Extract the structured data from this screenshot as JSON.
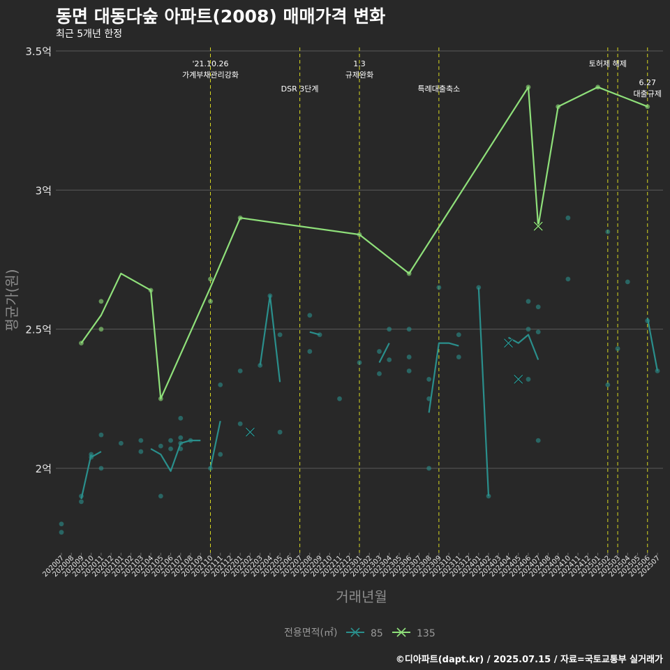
{
  "title": "동면 대동다숲 아파트(2008) 매매가격 변화",
  "subtitle": "최근 5개년 한정",
  "caption": "©디아파트(dapt.kr) / 2025.07.15 / 자료=국토교통부 실거래가",
  "colors": {
    "background": "#282828",
    "grid": "#5a5a5a",
    "series_85": "#2a8f8c",
    "series_135": "#8fe07a",
    "event_line": "#d8d820"
  },
  "chart_data": {
    "type": "line",
    "xlabel": "거래년월",
    "ylabel": "평균가(원)",
    "ylim": [
      1.7,
      3.5
    ],
    "yticks": [
      {
        "value": 2.0,
        "label": "2억"
      },
      {
        "value": 2.5,
        "label": "2.5억"
      },
      {
        "value": 3.0,
        "label": "3억"
      },
      {
        "value": 3.5,
        "label": "3.5억"
      }
    ],
    "categories": [
      "202007",
      "202008",
      "202009",
      "202010",
      "202011",
      "202012",
      "202101",
      "202102",
      "202103",
      "202104",
      "202105",
      "202106",
      "202107",
      "202108",
      "202109",
      "202110",
      "202111",
      "202112",
      "202201",
      "202202",
      "202203",
      "202204",
      "202205",
      "202206",
      "202207",
      "202208",
      "202209",
      "202210",
      "202211",
      "202212",
      "202301",
      "202302",
      "202303",
      "202304",
      "202305",
      "202306",
      "202307",
      "202308",
      "202309",
      "202310",
      "202311",
      "202312",
      "202401",
      "202402",
      "202403",
      "202404",
      "202405",
      "202406",
      "202407",
      "202408",
      "202409",
      "202410",
      "202411",
      "202412",
      "202501",
      "202502",
      "202503",
      "202504",
      "202505",
      "202506",
      "202507"
    ],
    "events": [
      {
        "x": 15,
        "label": [
          "'21.10.26",
          "가계부채관리강화"
        ],
        "row": 0
      },
      {
        "x": 24,
        "label": [
          "DSR 3단계"
        ],
        "row": 1
      },
      {
        "x": 30,
        "label": [
          "1.3",
          "규제완화"
        ],
        "row": 0
      },
      {
        "x": 38,
        "label": [
          "특례대출축소"
        ],
        "row": 1
      },
      {
        "x": 55,
        "label": [
          "토허제 해제"
        ],
        "row": 0
      },
      {
        "x": 56,
        "label": [],
        "row": 0
      },
      {
        "x": 59,
        "label": [
          "6.27",
          "대출규제"
        ],
        "row": 2
      }
    ],
    "series": [
      {
        "name": "85",
        "legend_label": "85",
        "marker": "x",
        "line": [
          {
            "segment": [
              [
                2,
                1.89
              ],
              [
                3,
                2.05
              ]
            ]
          },
          {
            "segment": [
              [
                3,
                2.04
              ],
              [
                4,
                2.06
              ]
            ]
          },
          {
            "segment": [
              [
                9,
                2.07
              ],
              [
                10,
                2.05
              ],
              [
                11,
                1.99
              ],
              [
                12,
                2.09
              ],
              [
                13,
                2.1
              ],
              [
                14,
                2.1
              ]
            ]
          },
          {
            "segment": [
              [
                15,
                2.0
              ],
              [
                16,
                2.17
              ]
            ]
          },
          {
            "segment": [
              [
                20,
                2.37
              ],
              [
                21,
                2.62
              ],
              [
                22,
                2.31
              ]
            ]
          },
          {
            "segment": [
              [
                25,
                2.49
              ],
              [
                26,
                2.48
              ]
            ]
          },
          {
            "segment": [
              [
                32,
                2.38
              ],
              [
                33,
                2.45
              ]
            ]
          },
          {
            "segment": [
              [
                37,
                2.2
              ],
              [
                38,
                2.45
              ],
              [
                39,
                2.45
              ],
              [
                40,
                2.44
              ]
            ]
          },
          {
            "segment": [
              [
                42,
                2.65
              ],
              [
                43,
                1.9
              ]
            ]
          },
          {
            "segment": [
              [
                45,
                2.47
              ],
              [
                46,
                2.45
              ],
              [
                47,
                2.48
              ],
              [
                48,
                2.39
              ]
            ]
          },
          {
            "segment": [
              [
                59,
                2.54
              ],
              [
                60,
                2.35
              ]
            ]
          }
        ],
        "points": [
          [
            0,
            1.8
          ],
          [
            0,
            1.77
          ],
          [
            2,
            1.88
          ],
          [
            2,
            1.9
          ],
          [
            3,
            2.04
          ],
          [
            3,
            2.05
          ],
          [
            4,
            2.12
          ],
          [
            4,
            2.0
          ],
          [
            6,
            2.09
          ],
          [
            8,
            2.1
          ],
          [
            8,
            2.06
          ],
          [
            10,
            2.08
          ],
          [
            10,
            1.9
          ],
          [
            11,
            2.07
          ],
          [
            11,
            2.1
          ],
          [
            12,
            2.18
          ],
          [
            12,
            2.11
          ],
          [
            12,
            2.09
          ],
          [
            12,
            2.07
          ],
          [
            13,
            2.1
          ],
          [
            15,
            2.0
          ],
          [
            16,
            2.3
          ],
          [
            16,
            2.05
          ],
          [
            18,
            2.35
          ],
          [
            18,
            2.16
          ],
          [
            20,
            2.37
          ],
          [
            21,
            2.62
          ],
          [
            22,
            2.48
          ],
          [
            22,
            2.13
          ],
          [
            25,
            2.55
          ],
          [
            25,
            2.42
          ],
          [
            26,
            2.48
          ],
          [
            28,
            2.25
          ],
          [
            30,
            2.38
          ],
          [
            32,
            2.42
          ],
          [
            32,
            2.34
          ],
          [
            33,
            2.5
          ],
          [
            33,
            2.39
          ],
          [
            35,
            2.5
          ],
          [
            35,
            2.4
          ],
          [
            35,
            2.35
          ],
          [
            37,
            2.0
          ],
          [
            37,
            2.32
          ],
          [
            37,
            2.25
          ],
          [
            38,
            2.65
          ],
          [
            40,
            2.48
          ],
          [
            40,
            2.4
          ],
          [
            42,
            2.65
          ],
          [
            43,
            1.9
          ],
          [
            47,
            2.6
          ],
          [
            47,
            2.5
          ],
          [
            47,
            2.32
          ],
          [
            48,
            2.58
          ],
          [
            48,
            2.49
          ],
          [
            48,
            2.1
          ],
          [
            51,
            2.9
          ],
          [
            51,
            2.68
          ],
          [
            55,
            2.85
          ],
          [
            55,
            2.3
          ],
          [
            56,
            2.43
          ],
          [
            57,
            2.67
          ],
          [
            59,
            2.53
          ],
          [
            60,
            2.35
          ]
        ],
        "x_markers": [
          [
            19,
            2.13
          ],
          [
            45,
            2.45
          ],
          [
            46,
            2.32
          ]
        ]
      },
      {
        "name": "135",
        "legend_label": "135",
        "marker": "x",
        "line": [
          {
            "segment": [
              [
                2,
                2.45
              ],
              [
                4,
                2.55
              ],
              [
                6,
                2.7
              ],
              [
                9,
                2.64
              ],
              [
                10,
                2.25
              ],
              [
                15,
                2.65
              ],
              [
                18,
                2.9
              ],
              [
                30,
                2.84
              ],
              [
                35,
                2.7
              ],
              [
                47,
                3.37
              ],
              [
                48,
                2.87
              ],
              [
                50,
                3.3
              ],
              [
                54,
                3.37
              ],
              [
                59,
                3.3
              ]
            ]
          }
        ],
        "points": [
          [
            2,
            2.45
          ],
          [
            4,
            2.6
          ],
          [
            4,
            2.5
          ],
          [
            9,
            2.64
          ],
          [
            10,
            2.25
          ],
          [
            15,
            2.68
          ],
          [
            15,
            2.6
          ],
          [
            18,
            2.9
          ],
          [
            30,
            2.84
          ],
          [
            35,
            2.7
          ],
          [
            47,
            3.37
          ],
          [
            50,
            3.3
          ],
          [
            54,
            3.37
          ],
          [
            59,
            3.3
          ]
        ],
        "x_markers": [
          [
            48,
            2.87
          ]
        ]
      }
    ],
    "legend": {
      "title": "전용면적(㎡)",
      "position": "bottom"
    }
  }
}
